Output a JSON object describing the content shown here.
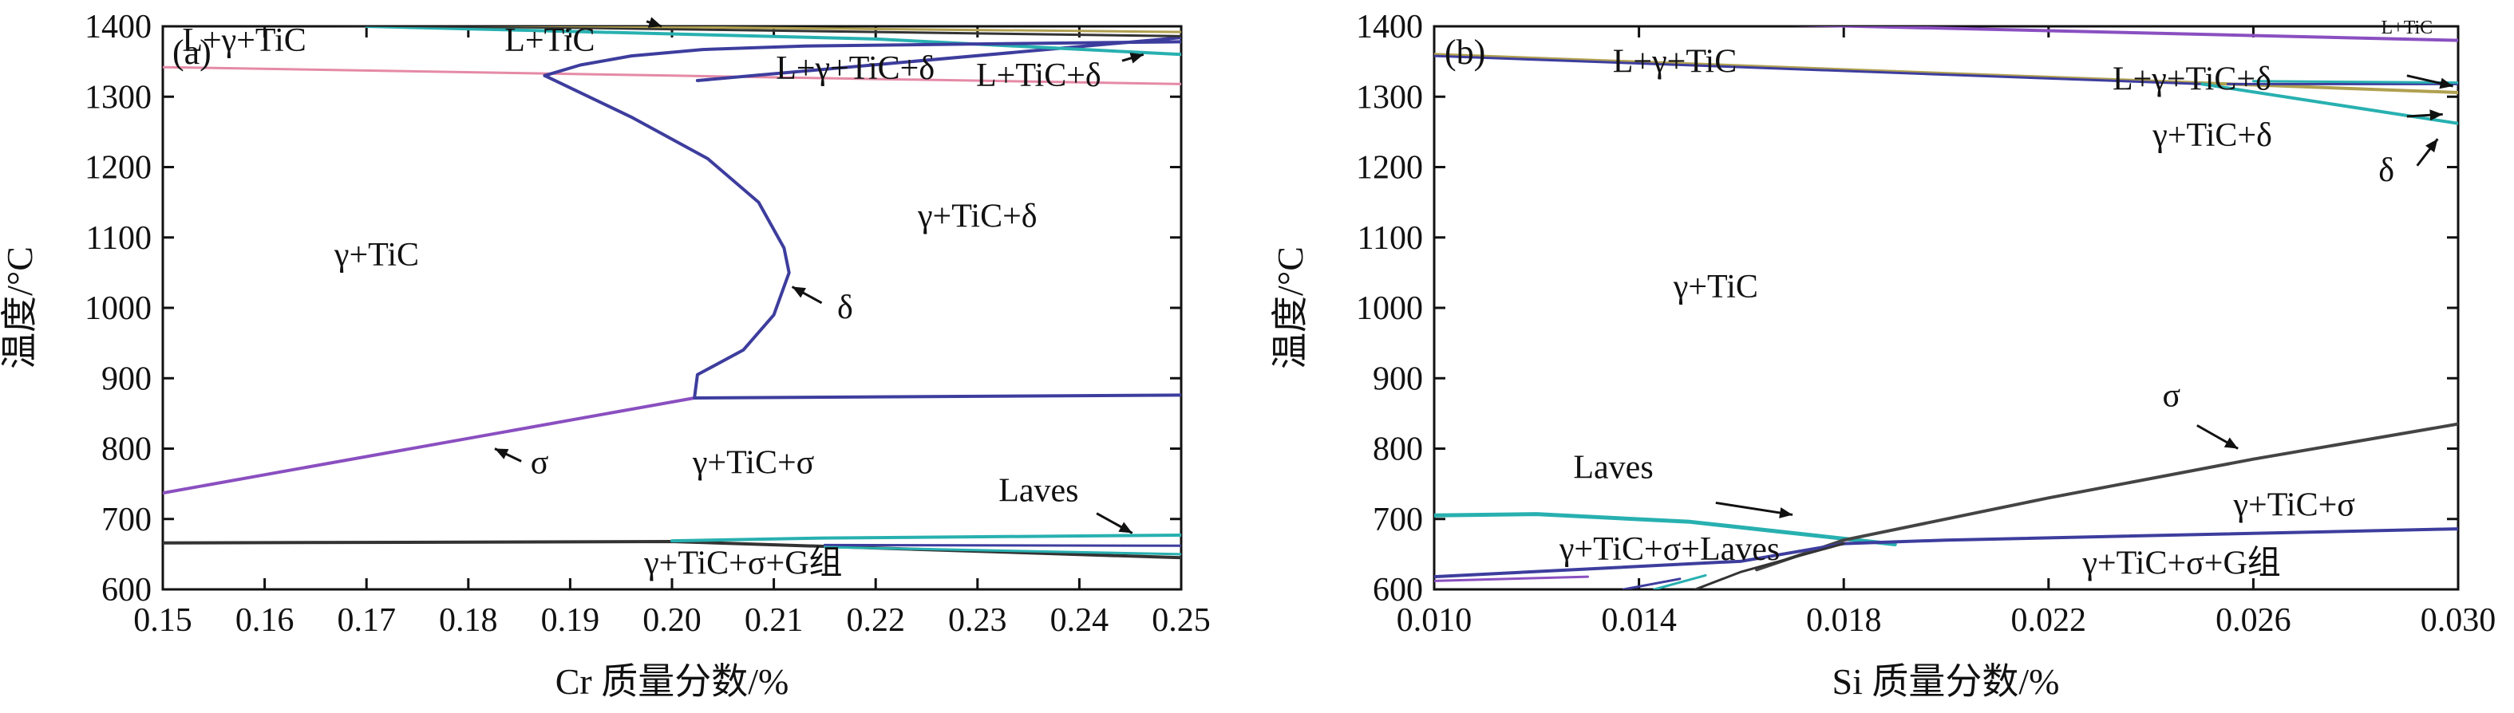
{
  "chart_data": [
    {
      "type": "line",
      "panel_label": "(a)",
      "xlabel": "Cr 质量分数/%",
      "ylabel": "温度/°C",
      "xlim": [
        0.15,
        0.25
      ],
      "ylim": [
        600,
        1400
      ],
      "x_ticks": [
        "0.15",
        "0.16",
        "0.17",
        "0.18",
        "0.19",
        "0.20",
        "0.21",
        "0.22",
        "0.23",
        "0.24",
        "0.25"
      ],
      "y_ticks": [
        "600",
        "700",
        "800",
        "900",
        "1000",
        "1100",
        "1200",
        "1300",
        "1400"
      ],
      "series": [
        {
          "color": "#e58aa6",
          "width": 3,
          "points": [
            [
              0.15,
              1342
            ],
            [
              0.2,
              1330
            ],
            [
              0.25,
              1318
            ]
          ]
        },
        {
          "color": "#3d3d9e",
          "width": 4,
          "points": [
            [
              0.2025,
              1323
            ],
            [
              0.25,
              1384
            ]
          ]
        },
        {
          "color": "#28b0b0",
          "width": 4,
          "points": [
            [
              0.17,
              1400
            ],
            [
              0.22,
              1382
            ],
            [
              0.25,
              1360
            ]
          ]
        },
        {
          "color": "#333333",
          "width": 3,
          "points": [
            [
              0.15,
              1404
            ],
            [
              0.19,
              1398
            ],
            [
              0.25,
              1386
            ]
          ]
        },
        {
          "color": "#b0a050",
          "width": 3,
          "points": [
            [
              0.15,
              1406
            ],
            [
              0.25,
              1392
            ]
          ]
        },
        {
          "color": "#3d3d9e",
          "width": 4,
          "points": [
            [
              0.1875,
              1330
            ],
            [
              0.196,
              1271
            ],
            [
              0.2035,
              1212
            ],
            [
              0.2085,
              1150
            ],
            [
              0.211,
              1085
            ],
            [
              0.2115,
              1050
            ],
            [
              0.21,
              990
            ],
            [
              0.207,
              940
            ],
            [
              0.2025,
              905
            ],
            [
              0.2022,
              872
            ]
          ]
        },
        {
          "color": "#3d3d9e",
          "width": 4,
          "points": [
            [
              0.1875,
              1330
            ],
            [
              0.191,
              1345
            ],
            [
              0.196,
              1358
            ],
            [
              0.203,
              1367
            ],
            [
              0.213,
              1372
            ],
            [
              0.23,
              1375
            ],
            [
              0.25,
              1378
            ]
          ]
        },
        {
          "color": "#8a4fc0",
          "width": 4,
          "points": [
            [
              0.15,
              737
            ],
            [
              0.2022,
              872
            ]
          ]
        },
        {
          "color": "#3d3d9e",
          "width": 4,
          "points": [
            [
              0.2022,
              872
            ],
            [
              0.25,
              876
            ]
          ]
        },
        {
          "color": "#333333",
          "width": 4,
          "points": [
            [
              0.15,
              666
            ],
            [
              0.2,
              668
            ],
            [
              0.25,
              645
            ]
          ]
        },
        {
          "color": "#28b0b0",
          "width": 4,
          "points": [
            [
              0.2,
              669
            ],
            [
              0.215,
              673
            ],
            [
              0.25,
              677
            ]
          ]
        },
        {
          "color": "#3d3d9e",
          "width": 3,
          "points": [
            [
              0.215,
              663
            ],
            [
              0.25,
              662
            ]
          ]
        },
        {
          "color": "#28b0b0",
          "width": 3,
          "points": [
            [
              0.215,
              660
            ],
            [
              0.25,
              650
            ]
          ]
        }
      ],
      "region_labels": [
        {
          "text": "L+γ+TiC",
          "x": 0.158,
          "y": 1365
        },
        {
          "text": "L+TiC",
          "x": 0.188,
          "y": 1365
        },
        {
          "text": "L+γ+TiC+δ",
          "x": 0.218,
          "y": 1325
        },
        {
          "text": "L+TiC+δ",
          "x": 0.236,
          "y": 1315
        },
        {
          "text": "γ+TiC",
          "x": 0.171,
          "y": 1060
        },
        {
          "text": "γ+TiC+δ",
          "x": 0.23,
          "y": 1115
        },
        {
          "text": "δ",
          "x": 0.217,
          "y": 985
        },
        {
          "text": "σ",
          "x": 0.187,
          "y": 765
        },
        {
          "text": "γ+TiC+σ",
          "x": 0.208,
          "y": 765
        },
        {
          "text": "Laves",
          "x": 0.236,
          "y": 725
        },
        {
          "text": "γ+TiC+σ+G组",
          "x": 0.207,
          "y": 622
        }
      ],
      "pointers": [
        {
          "from": [
            0.2147,
            1007
          ],
          "to": [
            0.2118,
            1030
          ]
        },
        {
          "from": [
            0.1852,
            782
          ],
          "to": [
            0.1826,
            800
          ]
        },
        {
          "from": [
            0.2417,
            708
          ],
          "to": [
            0.2452,
            680
          ]
        },
        {
          "from": [
            0.2442,
            1351
          ],
          "to": [
            0.2463,
            1360
          ]
        },
        {
          "from": [
            0.1975,
            1407
          ],
          "to": [
            0.199,
            1400
          ]
        }
      ]
    },
    {
      "type": "line",
      "panel_label": "(b)",
      "xlabel": "Si 质量分数/%",
      "ylabel": "温度/°C",
      "xlim": [
        0.01,
        0.03
      ],
      "ylim": [
        600,
        1400
      ],
      "x_ticks": [
        "0.010",
        "0.014",
        "0.018",
        "0.022",
        "0.026",
        "0.030"
      ],
      "x_tick_values": [
        0.01,
        0.014,
        0.018,
        0.022,
        0.026,
        0.03
      ],
      "y_ticks": [
        "600",
        "700",
        "800",
        "900",
        "1000",
        "1100",
        "1200",
        "1300",
        "1400"
      ],
      "series": [
        {
          "color": "#b0a050",
          "width": 4,
          "points": [
            [
              0.01,
              1360
            ],
            [
              0.03,
              1306
            ]
          ]
        },
        {
          "color": "#3d3d9e",
          "width": 3,
          "points": [
            [
              0.01,
              1358
            ],
            [
              0.025,
              1318
            ]
          ]
        },
        {
          "color": "#28b0b0",
          "width": 4,
          "points": [
            [
              0.025,
              1318
            ],
            [
              0.03,
              1262
            ]
          ]
        },
        {
          "color": "#3d3d9e",
          "width": 3,
          "points": [
            [
              0.0255,
              1318
            ],
            [
              0.03,
              1318
            ]
          ]
        },
        {
          "color": "#28b0b0",
          "width": 3,
          "points": [
            [
              0.026,
              1322
            ],
            [
              0.03,
              1320
            ]
          ]
        },
        {
          "color": "#8a4fc0",
          "width": 4,
          "points": [
            [
              0.016,
              1404
            ],
            [
              0.03,
              1380
            ]
          ]
        },
        {
          "color": "#28b0b0",
          "width": 5,
          "points": [
            [
              0.01,
              705
            ],
            [
              0.012,
              707
            ],
            [
              0.015,
              696
            ],
            [
              0.0175,
              676
            ],
            [
              0.019,
              664
            ]
          ]
        },
        {
          "color": "#444444",
          "width": 4,
          "points": [
            [
              0.0163,
              628
            ],
            [
              0.018,
              670
            ],
            [
              0.022,
              730
            ],
            [
              0.026,
              785
            ],
            [
              0.03,
              835
            ]
          ]
        },
        {
          "color": "#3d3d9e",
          "width": 4,
          "points": [
            [
              0.01,
              618
            ],
            [
              0.016,
              640
            ],
            [
              0.018,
              665
            ],
            [
              0.02,
              670
            ],
            [
              0.03,
              686
            ]
          ]
        },
        {
          "color": "#8a4fc0",
          "width": 3,
          "points": [
            [
              0.01,
              612
            ],
            [
              0.013,
              618
            ]
          ]
        },
        {
          "color": "#333333",
          "width": 3,
          "points": [
            [
              0.0151,
              600
            ],
            [
              0.016,
              625
            ],
            [
              0.018,
              665
            ]
          ]
        },
        {
          "color": "#28b0b0",
          "width": 3,
          "points": [
            [
              0.0143,
              600
            ],
            [
              0.0153,
              620
            ]
          ]
        },
        {
          "color": "#3d3d9e",
          "width": 3,
          "points": [
            [
              0.0137,
              600
            ],
            [
              0.0148,
              615
            ]
          ]
        }
      ],
      "region_labels": [
        {
          "text": "L+TiC",
          "x": 0.029,
          "y": 1390
        },
        {
          "text": "L+γ+TiC",
          "x": 0.0147,
          "y": 1335
        },
        {
          "text": "L+γ+TiC+δ",
          "x": 0.0248,
          "y": 1310
        },
        {
          "text": "γ+TiC+δ",
          "x": 0.0252,
          "y": 1230
        },
        {
          "text": "δ",
          "x": 0.0286,
          "y": 1180
        },
        {
          "text": "γ+TiC",
          "x": 0.0155,
          "y": 1015
        },
        {
          "text": "σ",
          "x": 0.0244,
          "y": 860
        },
        {
          "text": "Laves",
          "x": 0.0135,
          "y": 758
        },
        {
          "text": "γ+TiC+σ",
          "x": 0.0268,
          "y": 705
        },
        {
          "text": "γ+TiC+σ+Laves",
          "x": 0.0146,
          "y": 642
        },
        {
          "text": "γ+TiC+σ+G组",
          "x": 0.0246,
          "y": 622
        }
      ],
      "pointers": [
        {
          "from": [
            0.029,
            1330
          ],
          "to": [
            0.0299,
            1315
          ]
        },
        {
          "from": [
            0.029,
            1272
          ],
          "to": [
            0.0297,
            1275
          ]
        },
        {
          "from": [
            0.0292,
            1202
          ],
          "to": [
            0.0296,
            1240
          ]
        },
        {
          "from": [
            0.0249,
            833
          ],
          "to": [
            0.0257,
            800
          ]
        },
        {
          "from": [
            0.0155,
            723
          ],
          "to": [
            0.017,
            706
          ]
        }
      ]
    }
  ]
}
